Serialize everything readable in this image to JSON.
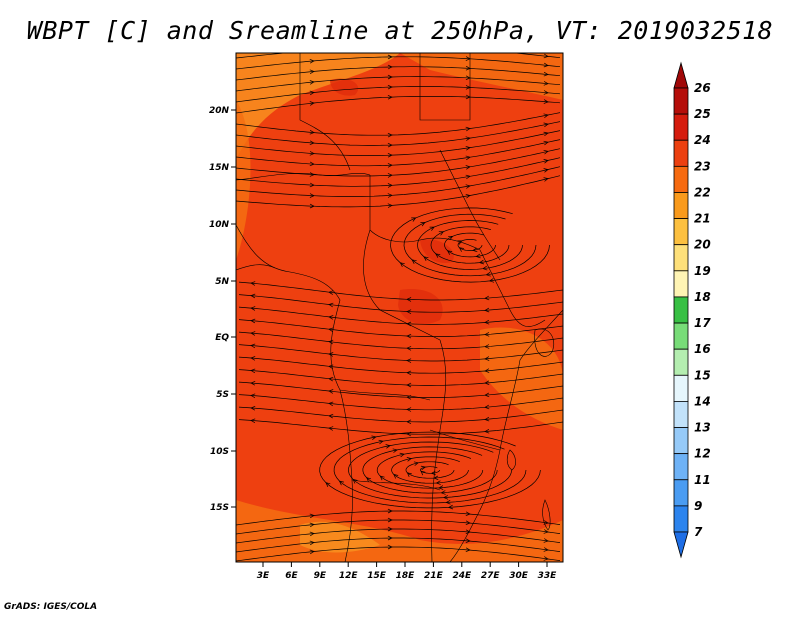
{
  "title": "WBPT [C] and Sreamline at 250hPa, VT: 2019032518",
  "credit": "GrADS: IGES/COLA",
  "map": {
    "lat_labels": [
      "20N",
      "15N",
      "10N",
      "5N",
      "EQ",
      "5S",
      "10S",
      "15S"
    ],
    "lon_labels": [
      "3E",
      "6E",
      "9E",
      "12E",
      "15E",
      "18E",
      "21E",
      "24E",
      "27E",
      "30E",
      "33E"
    ],
    "field_dominant_color": "#ee4010",
    "field_secondary_color": "#f56e12",
    "field_warm_patch_color": "#e02e0c",
    "field_north_color": "#f89020",
    "streamline_color": "#000000"
  },
  "colorbar": {
    "levels": [
      "7",
      "9",
      "11",
      "12",
      "13",
      "14",
      "15",
      "16",
      "17",
      "18",
      "19",
      "20",
      "21",
      "22",
      "23",
      "24",
      "25",
      "26"
    ],
    "colors": [
      "#1e6ee6",
      "#2c84ee",
      "#4a9cf2",
      "#6eb2f6",
      "#96caf8",
      "#c2e2fa",
      "#e6f6fc",
      "#b4eeb0",
      "#78dc78",
      "#38c044",
      "#fff4b4",
      "#fee07a",
      "#fcc040",
      "#f99a1c",
      "#f66a10",
      "#ec4010",
      "#d51c0e",
      "#b50e0a",
      "#a00808"
    ]
  }
}
